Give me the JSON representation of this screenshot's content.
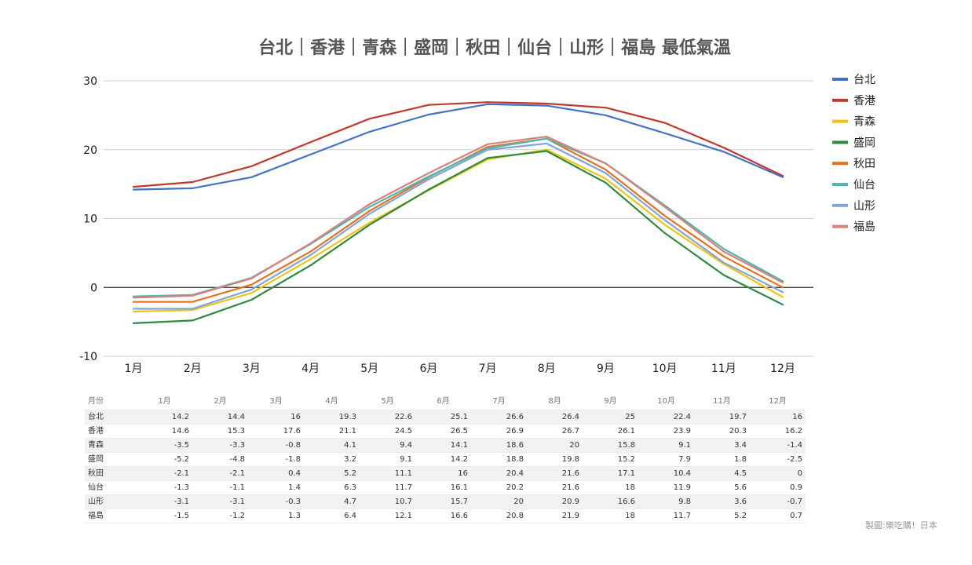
{
  "chart_data": {
    "type": "line",
    "title": "台北｜香港｜青森｜盛岡｜秋田｜仙台｜山形｜福島 最低氣溫",
    "categories": [
      "1月",
      "2月",
      "3月",
      "4月",
      "5月",
      "6月",
      "7月",
      "8月",
      "9月",
      "10月",
      "11月",
      "12月"
    ],
    "ylim": [
      -10,
      30
    ],
    "yticks": [
      -10,
      0,
      10,
      20,
      30
    ],
    "grid": true,
    "legend_position": "right",
    "series": [
      {
        "name": "台北",
        "color": "#4472c4",
        "values": [
          14.2,
          14.4,
          16,
          19.3,
          22.6,
          25.1,
          26.6,
          26.4,
          25,
          22.4,
          19.7,
          16
        ]
      },
      {
        "name": "香港",
        "color": "#c0392b",
        "values": [
          14.6,
          15.3,
          17.6,
          21.1,
          24.5,
          26.5,
          26.9,
          26.7,
          26.1,
          23.9,
          20.3,
          16.2
        ]
      },
      {
        "name": "青森",
        "color": "#f1c40f",
        "values": [
          -3.5,
          -3.3,
          -0.8,
          4.1,
          9.4,
          14.1,
          18.6,
          20,
          15.8,
          9.1,
          3.4,
          -1.4
        ]
      },
      {
        "name": "盛岡",
        "color": "#2e8b3d",
        "values": [
          -5.2,
          -4.8,
          -1.8,
          3.2,
          9.1,
          14.2,
          18.8,
          19.8,
          15.2,
          7.9,
          1.8,
          -2.5
        ]
      },
      {
        "name": "秋田",
        "color": "#e8701a",
        "values": [
          -2.1,
          -2.1,
          0.4,
          5.2,
          11.1,
          16,
          20.4,
          21.6,
          17.1,
          10.4,
          4.5,
          0
        ]
      },
      {
        "name": "仙台",
        "color": "#4cb8b0",
        "values": [
          -1.3,
          -1.1,
          1.4,
          6.3,
          11.7,
          16.1,
          20.2,
          21.6,
          18,
          11.9,
          5.6,
          0.9
        ]
      },
      {
        "name": "山形",
        "color": "#7ea6d8",
        "values": [
          -3.1,
          -3.1,
          -0.3,
          4.7,
          10.7,
          15.7,
          20,
          20.9,
          16.6,
          9.8,
          3.6,
          -0.7
        ]
      },
      {
        "name": "福島",
        "color": "#d9817a",
        "values": [
          -1.5,
          -1.2,
          1.3,
          6.4,
          12.1,
          16.6,
          20.8,
          21.9,
          18,
          11.7,
          5.2,
          0.7
        ]
      }
    ]
  },
  "table": {
    "header_label": "月份",
    "months": [
      "1月",
      "2月",
      "3月",
      "4月",
      "5月",
      "6月",
      "7月",
      "8月",
      "9月",
      "10月",
      "11月",
      "12月"
    ]
  },
  "credit": "製圖:樂吃購！日本"
}
